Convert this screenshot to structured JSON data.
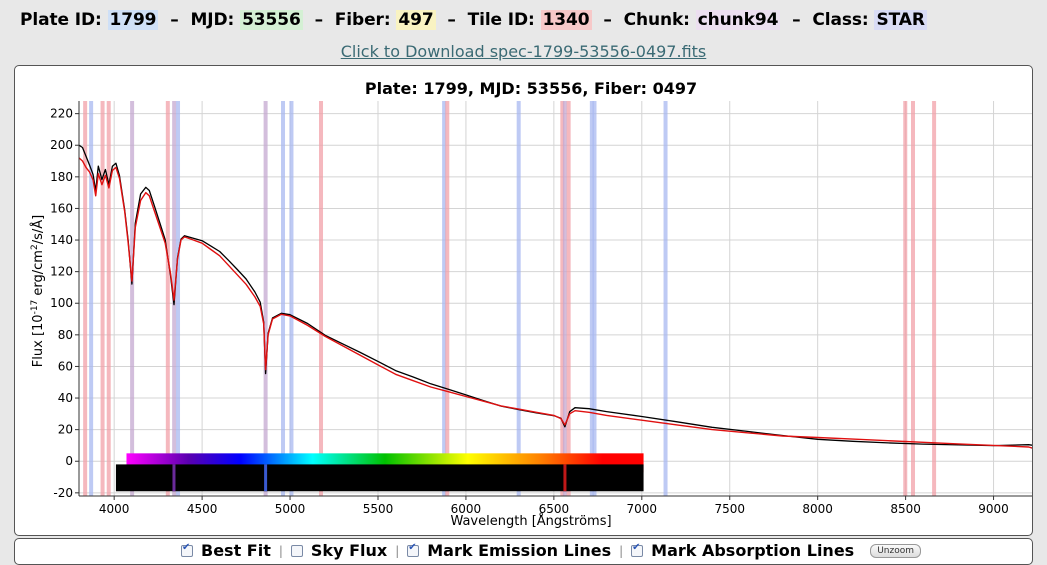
{
  "header": {
    "plate_label": "Plate ID:",
    "plate_value": "1799",
    "mjd_label": "MJD:",
    "mjd_value": "53556",
    "fiber_label": "Fiber:",
    "fiber_value": "497",
    "tile_label": "Tile ID:",
    "tile_value": "1340",
    "chunk_label": "Chunk:",
    "chunk_value": "chunk94",
    "class_label": "Class:",
    "class_value": "STAR",
    "separator": "–",
    "colors": {
      "plate": "#cfe0f7",
      "mjd": "#d4f0d4",
      "fiber": "#f9f3c2",
      "tile": "#f7c9c9",
      "chunk": "#ecdff0",
      "class": "#d9dcf5"
    }
  },
  "download_link": "Click to Download spec-1799-53556-0497.fits",
  "controls": {
    "best_fit": {
      "label": "Best Fit",
      "checked": true
    },
    "sky_flux": {
      "label": "Sky Flux",
      "checked": false
    },
    "emission": {
      "label": "Mark Emission Lines",
      "checked": true
    },
    "absorption": {
      "label": "Mark Absorption Lines",
      "checked": true
    },
    "separator": "|",
    "unzoom_label": "Unzoom"
  },
  "chart_data": {
    "type": "line",
    "title": "Plate: 1799, MJD: 53556, Fiber: 0497",
    "xlabel": "Wavelength [Ångströms]",
    "ylabel_main": "Flux [10",
    "ylabel_exp": "-17",
    "ylabel_mid": " erg/cm",
    "ylabel_sq": "2",
    "ylabel_end": "/s/Å]",
    "xlim": [
      3800,
      9230
    ],
    "ylim": [
      -22,
      228
    ],
    "x_ticks": [
      4000,
      4500,
      5000,
      5500,
      6000,
      6500,
      7000,
      7500,
      8000,
      8500,
      9000
    ],
    "y_ticks": [
      -20,
      0,
      20,
      40,
      60,
      80,
      100,
      120,
      140,
      160,
      180,
      200,
      220
    ],
    "grid": true,
    "colors": {
      "flux": "#000000",
      "model": "#e01010",
      "emission": "#f2a0a8",
      "absorption": "#a8b8f0",
      "mixed": "#c4a8d0"
    },
    "series": [
      {
        "name": "Flux",
        "x": [
          3800,
          3820,
          3840,
          3860,
          3880,
          3895,
          3910,
          3930,
          3950,
          3970,
          3990,
          4010,
          4030,
          4060,
          4080,
          4101,
          4120,
          4150,
          4180,
          4200,
          4230,
          4260,
          4290,
          4320,
          4340,
          4360,
          4380,
          4400,
          4450,
          4500,
          4550,
          4600,
          4650,
          4700,
          4750,
          4800,
          4830,
          4850,
          4861,
          4875,
          4900,
          4950,
          5000,
          5100,
          5200,
          5300,
          5400,
          5500,
          5600,
          5700,
          5800,
          5900,
          6000,
          6100,
          6200,
          6300,
          6400,
          6500,
          6540,
          6563,
          6590,
          6620,
          6700,
          6800,
          7000,
          7200,
          7400,
          7600,
          7800,
          8000,
          8200,
          8400,
          8600,
          8800,
          9000,
          9200,
          9230
        ],
        "y": [
          200,
          198,
          192,
          186,
          180,
          170,
          186,
          178,
          185,
          176,
          188,
          190,
          182,
          160,
          140,
          112,
          150,
          168,
          172,
          170,
          160,
          150,
          140,
          118,
          100,
          130,
          142,
          144,
          142,
          140,
          136,
          132,
          126,
          120,
          114,
          106,
          100,
          88,
          56,
          82,
          92,
          95,
          94,
          88,
          80,
          74,
          68,
          62,
          56,
          52,
          48,
          45,
          42,
          39,
          36,
          34,
          32,
          30,
          28,
          22,
          31,
          33,
          32,
          30,
          27,
          24,
          21,
          19,
          17,
          15,
          14,
          13,
          12,
          11,
          10,
          10,
          9
        ]
      },
      {
        "name": "Best Fit",
        "x": [
          3800,
          3820,
          3840,
          3860,
          3880,
          3895,
          3910,
          3930,
          3950,
          3970,
          3990,
          4010,
          4030,
          4060,
          4080,
          4101,
          4120,
          4150,
          4180,
          4200,
          4230,
          4260,
          4290,
          4320,
          4340,
          4360,
          4380,
          4400,
          4450,
          4500,
          4550,
          4600,
          4650,
          4700,
          4750,
          4800,
          4830,
          4850,
          4861,
          4875,
          4900,
          4950,
          5000,
          5100,
          5200,
          5300,
          5400,
          5500,
          5600,
          5700,
          5800,
          5900,
          6000,
          6100,
          6200,
          6300,
          6400,
          6500,
          6540,
          6563,
          6590,
          6620,
          6700,
          6800,
          7000,
          7200,
          7400,
          7600,
          7800,
          8000,
          8200,
          8400,
          8600,
          8800,
          9000,
          9200,
          9230
        ],
        "y": [
          192,
          190,
          186,
          183,
          178,
          168,
          182,
          175,
          181,
          173,
          184,
          186,
          179,
          158,
          138,
          114,
          148,
          165,
          170,
          168,
          158,
          148,
          138,
          119,
          102,
          128,
          140,
          142,
          140,
          138,
          134,
          130,
          124,
          118,
          112,
          104,
          98,
          87,
          58,
          80,
          90,
          93,
          92,
          86,
          79,
          73,
          67,
          61,
          55,
          51,
          47,
          44,
          41,
          38,
          35,
          33,
          31,
          29,
          27,
          23,
          30,
          32,
          31,
          29,
          26,
          23,
          20,
          18,
          16,
          15,
          14,
          13,
          12,
          11,
          10,
          9,
          8
        ]
      }
    ],
    "line_marks": [
      {
        "x": 3835,
        "kind": "emission"
      },
      {
        "x": 3869,
        "kind": "absorption"
      },
      {
        "x": 3934,
        "kind": "emission"
      },
      {
        "x": 3969,
        "kind": "emission"
      },
      {
        "x": 4102,
        "kind": "mixed"
      },
      {
        "x": 4305,
        "kind": "emission"
      },
      {
        "x": 4341,
        "kind": "mixed"
      },
      {
        "x": 4363,
        "kind": "absorption"
      },
      {
        "x": 4861,
        "kind": "mixed"
      },
      {
        "x": 4960,
        "kind": "absorption"
      },
      {
        "x": 5008,
        "kind": "absorption"
      },
      {
        "x": 5176,
        "kind": "emission"
      },
      {
        "x": 5876,
        "kind": "absorption"
      },
      {
        "x": 5894,
        "kind": "emission"
      },
      {
        "x": 6300,
        "kind": "absorption"
      },
      {
        "x": 6548,
        "kind": "emission"
      },
      {
        "x": 6563,
        "kind": "mixed"
      },
      {
        "x": 6584,
        "kind": "emission"
      },
      {
        "x": 6716,
        "kind": "absorption"
      },
      {
        "x": 6731,
        "kind": "absorption"
      },
      {
        "x": 7135,
        "kind": "absorption"
      },
      {
        "x": 8498,
        "kind": "emission"
      },
      {
        "x": 8542,
        "kind": "emission"
      },
      {
        "x": 8662,
        "kind": "emission"
      }
    ],
    "spectrum_bar_range": [
      4070,
      7010
    ],
    "lines_bar_range": [
      4010,
      7010
    ],
    "lines_bar_marks": [
      4340,
      4861,
      6563
    ]
  }
}
